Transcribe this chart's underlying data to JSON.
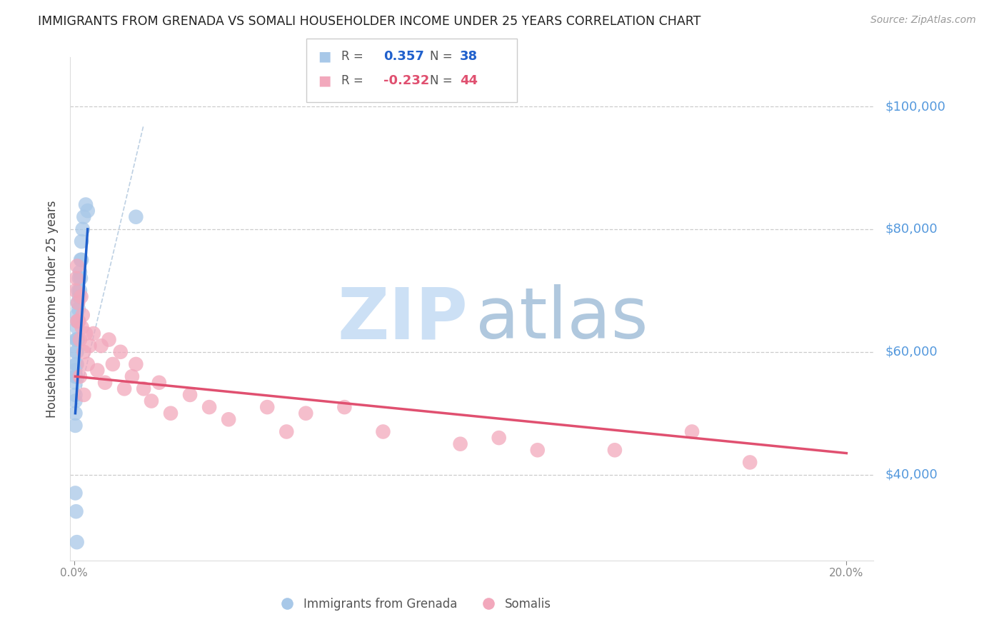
{
  "title": "IMMIGRANTS FROM GRENADA VS SOMALI HOUSEHOLDER INCOME UNDER 25 YEARS CORRELATION CHART",
  "source": "Source: ZipAtlas.com",
  "ylabel": "Householder Income Under 25 years",
  "ytick_values": [
    40000,
    60000,
    80000,
    100000
  ],
  "ytick_labels": [
    "$40,000",
    "$60,000",
    "$80,000",
    "$100,000"
  ],
  "ylim": [
    26000,
    108000
  ],
  "xlim": [
    -0.001,
    0.207
  ],
  "xticks": [
    0.0,
    0.2
  ],
  "xtick_labels": [
    "0.0%",
    "20.0%"
  ],
  "grenada_R": 0.357,
  "grenada_N": 38,
  "somali_R": -0.232,
  "somali_N": 44,
  "grenada_color": "#a8c8e8",
  "somali_color": "#f2a8bc",
  "grenada_line_color": "#2060cc",
  "somali_line_color": "#e05070",
  "watermark_zip_color": "#cce0f5",
  "watermark_atlas_color": "#b0c8de",
  "legend_item_grenada": "Immigrants from Grenada",
  "legend_item_somali": "Somalis",
  "grenada_x": [
    0.0003,
    0.0003,
    0.0003,
    0.0003,
    0.0003,
    0.0003,
    0.0003,
    0.0005,
    0.0005,
    0.0005,
    0.0005,
    0.0007,
    0.0007,
    0.0007,
    0.0007,
    0.0007,
    0.0009,
    0.0009,
    0.0009,
    0.0011,
    0.0011,
    0.0011,
    0.0013,
    0.0013,
    0.0015,
    0.0015,
    0.0017,
    0.0017,
    0.0019,
    0.0019,
    0.0022,
    0.0025,
    0.003,
    0.0035,
    0.0003,
    0.0005,
    0.0007,
    0.016
  ],
  "grenada_y": [
    57000,
    56000,
    55000,
    53000,
    52000,
    50000,
    48000,
    62000,
    60000,
    58000,
    56000,
    66000,
    64000,
    62000,
    60000,
    58000,
    68000,
    65000,
    62000,
    70000,
    67000,
    65000,
    72000,
    69000,
    73000,
    70000,
    75000,
    72000,
    78000,
    75000,
    80000,
    82000,
    84000,
    83000,
    37000,
    34000,
    29000,
    82000
  ],
  "grenada_trend_x": [
    0.0003,
    0.0035
  ],
  "grenada_trend_y": [
    50000,
    80000
  ],
  "somali_x": [
    0.0004,
    0.0006,
    0.0008,
    0.001,
    0.0012,
    0.0015,
    0.0018,
    0.002,
    0.0022,
    0.0025,
    0.003,
    0.0035,
    0.004,
    0.005,
    0.006,
    0.007,
    0.008,
    0.009,
    0.01,
    0.012,
    0.013,
    0.015,
    0.016,
    0.018,
    0.02,
    0.022,
    0.025,
    0.03,
    0.035,
    0.04,
    0.05,
    0.055,
    0.06,
    0.07,
    0.08,
    0.1,
    0.11,
    0.12,
    0.14,
    0.16,
    0.175,
    0.0008,
    0.0015,
    0.0025
  ],
  "somali_y": [
    70000,
    72000,
    74000,
    68000,
    65000,
    62000,
    69000,
    64000,
    66000,
    60000,
    63000,
    58000,
    61000,
    63000,
    57000,
    61000,
    55000,
    62000,
    58000,
    60000,
    54000,
    56000,
    58000,
    54000,
    52000,
    55000,
    50000,
    53000,
    51000,
    49000,
    51000,
    47000,
    50000,
    51000,
    47000,
    45000,
    46000,
    44000,
    44000,
    47000,
    42000,
    65000,
    56000,
    53000
  ],
  "somali_trend_x": [
    0.0003,
    0.2
  ],
  "somali_trend_y": [
    56000,
    43500
  ]
}
